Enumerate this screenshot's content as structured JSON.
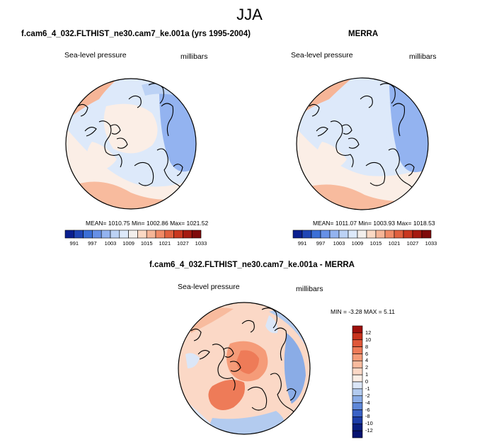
{
  "figure": {
    "season": "JJA",
    "panel1": {
      "title": "f.cam6_4_032.FLTHIST_ne30.cam7_ke.001a (yrs 1995-2004)",
      "variable": "Sea-level pressure",
      "units": "millibars",
      "stats": "MEAN= 1010.75  Min= 1002.86  Max= 1021.52"
    },
    "panel2": {
      "title": "MERRA",
      "variable": "Sea-level pressure",
      "units": "millibars",
      "stats": "MEAN= 1011.07  Min= 1003.93  Max= 1018.53"
    },
    "panel3": {
      "title": "f.cam6_4_032.FLTHIST_ne30.cam7_ke.001a - MERRA",
      "variable": "Sea-level pressure",
      "units": "millibars",
      "stats": "MIN =  -3.28 MAX =   5.11"
    }
  },
  "chart_data": [
    {
      "type": "heatmap",
      "title": "f.cam6_4_032.FLTHIST_ne30.cam7_ke.001a (yrs 1995-2004)",
      "projection": "north-polar-stereographic",
      "variable": "Sea-level pressure",
      "units": "millibars",
      "mean": 1010.75,
      "min": 1002.86,
      "max": 1021.52,
      "colorbar": {
        "orientation": "horizontal",
        "labels": [
          "991",
          "997",
          "1003",
          "1009",
          "1015",
          "1021",
          "1027",
          "1033"
        ],
        "colors": [
          "#0a1f8f",
          "#1f45b5",
          "#3b6fd6",
          "#6690e6",
          "#93b3f0",
          "#bcd2f5",
          "#dde9fa",
          "#f3efec",
          "#fbd9c4",
          "#f6b597",
          "#f08a66",
          "#e0603e",
          "#c8371f",
          "#a51a10",
          "#7f0a0a"
        ]
      }
    },
    {
      "type": "heatmap",
      "title": "MERRA",
      "projection": "north-polar-stereographic",
      "variable": "Sea-level pressure",
      "units": "millibars",
      "mean": 1011.07,
      "min": 1003.93,
      "max": 1018.53,
      "colorbar": {
        "orientation": "horizontal",
        "labels": [
          "991",
          "997",
          "1003",
          "1009",
          "1015",
          "1021",
          "1027",
          "1033"
        ],
        "colors": [
          "#0a1f8f",
          "#1f45b5",
          "#3b6fd6",
          "#6690e6",
          "#93b3f0",
          "#bcd2f5",
          "#dde9fa",
          "#f3efec",
          "#fbd9c4",
          "#f6b597",
          "#f08a66",
          "#e0603e",
          "#c8371f",
          "#a51a10",
          "#7f0a0a"
        ]
      }
    },
    {
      "type": "heatmap",
      "title": "f.cam6_4_032.FLTHIST_ne30.cam7_ke.001a - MERRA",
      "projection": "north-polar-stereographic",
      "variable": "Sea-level pressure",
      "units": "millibars",
      "min": -3.28,
      "max": 5.11,
      "colorbar": {
        "orientation": "vertical",
        "labels": [
          "12",
          "10",
          "8",
          "6",
          "4",
          "2",
          "1",
          "0",
          "-1",
          "-2",
          "-4",
          "-6",
          "-8",
          "-10",
          "-12"
        ],
        "colors": [
          "#9e0f0b",
          "#c8331d",
          "#e0583a",
          "#ee7b58",
          "#f59b78",
          "#f8bb9e",
          "#fbd8c6",
          "#fbeee6",
          "#dbe6f7",
          "#b3cbef",
          "#8aace6",
          "#5f87d8",
          "#3a62c6",
          "#1d3ea8",
          "#0a1f80",
          "#061370"
        ]
      }
    }
  ]
}
